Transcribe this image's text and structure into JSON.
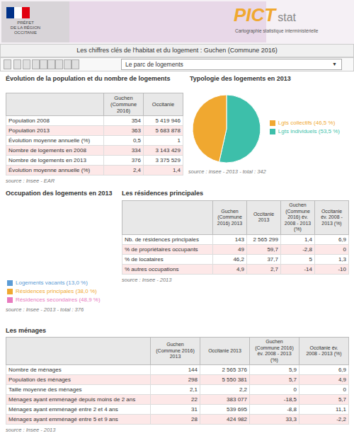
{
  "title": "Les chiffres clés de l'habitat et du logement : Guchen (Commune 2016)",
  "subtitle": "Le parc de logements",
  "annotations": [
    "PRÉFET\nDE LA RÉGION\nOCCITANIE",
    "PICT",
    "stat",
    "Cartographie statistique interministérielle",
    "▼"
  ],
  "chart_data": [
    {
      "type": "table",
      "title": "Évolution de la population et du nombre de logements",
      "columns": [
        "Guchen\n(Commune 2016)",
        "Occitanie"
      ],
      "rows": [
        [
          "Population 2008",
          "354",
          "5 419 946"
        ],
        [
          "Population 2013",
          "363",
          "5 683 878"
        ],
        [
          "Évolution moyenne annuelle (%)",
          "0,5",
          "1"
        ],
        [
          "Nombre de logements en 2008",
          "334",
          "3 143 429"
        ],
        [
          "Nombre de logements en 2013",
          "376",
          "3 375 529"
        ],
        [
          "Évolution moyenne annuelle (%)",
          "2,4",
          "1,4"
        ]
      ],
      "annotations": [
        "source : Insee - EAR"
      ]
    },
    {
      "type": "pie",
      "title": "Typologie des logements en 2013",
      "categories": [
        "Lgts individuels (53,5 %)",
        "Lgts collectifs (46,5 %)"
      ],
      "values": [
        53.5,
        46.5
      ],
      "colors": [
        "#3dbfaa",
        "#f0a830"
      ],
      "legend": "right",
      "annotations": [
        "source : insee - 2013 - total : 342"
      ]
    },
    {
      "type": "pie",
      "title": "Occupation des logements en 2013",
      "categories": [
        "Résidences principales (38,0 %)",
        "Logements vacants (13,0 %)",
        "Résidences secondaires (48,9 %)"
      ],
      "values": [
        38.0,
        13.0,
        48.9
      ],
      "colors": [
        "#f0a830",
        "#5b9bd5",
        "#e87abf"
      ],
      "legend": "bottom",
      "annotations": [
        "source : Insee - 2013 - total : 376"
      ]
    },
    {
      "type": "table",
      "title": "Les résidences principales",
      "columns": [
        "Guchen\n(Commune\n2016) 2013",
        "Occitanie\n2013",
        "Guchen\n(Commune\n2016) év.\n2008 - 2013\n(%)",
        "Occitanie\név. 2008 -\n2013 (%)"
      ],
      "rows": [
        [
          "Nb. de résidences principales",
          "143",
          "2 565 299",
          "1,4",
          "6,9"
        ],
        [
          "% de propriétaires occupants",
          "49",
          "59,7",
          "-2,8",
          "0"
        ],
        [
          "% de locataires",
          "46,2",
          "37,7",
          "5",
          "1,3"
        ],
        [
          "% autres occupations",
          "4,9",
          "2,7",
          "-14",
          "-10"
        ]
      ],
      "annotations": [
        "source : Insee - 2013"
      ]
    },
    {
      "type": "table",
      "title": "Les ménages",
      "columns": [
        "Guchen\n(Commune 2016)\n2013",
        "Occitanie 2013",
        "Guchen\n(Commune 2016)\név. 2008 - 2013\n(%)",
        "Occitanie év.\n2008 - 2013 (%)"
      ],
      "rows": [
        [
          "Nombre de ménages",
          "144",
          "2 565 376",
          "5,9",
          "6,9"
        ],
        [
          "Population des ménages",
          "298",
          "5 550 381",
          "5,7",
          "4,9"
        ],
        [
          "Taille moyenne des ménages",
          "2,1",
          "2,2",
          "0",
          "0"
        ],
        [
          "Ménages ayant emménagé depuis moins de 2 ans",
          "22",
          "383 077",
          "-18,5",
          "5,7"
        ],
        [
          "Ménages ayant emménagé entre 2 et 4 ans",
          "31",
          "539 695",
          "-8,8",
          "11,1"
        ],
        [
          "Ménages ayant emménagé entre 5 et 9 ans",
          "28",
          "424 982",
          "33,3",
          "-2,2"
        ]
      ],
      "annotations": [
        "source : Insee - 2013"
      ]
    }
  ]
}
